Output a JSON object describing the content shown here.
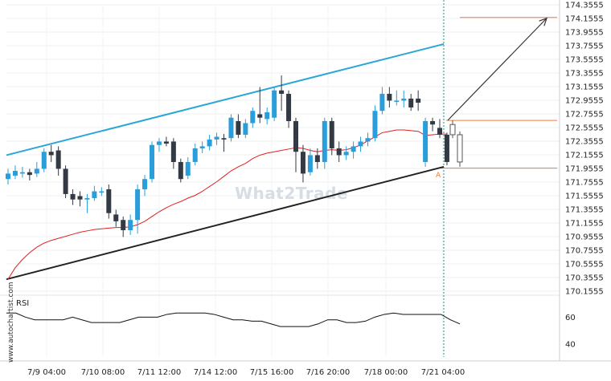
{
  "watermark": "What2Trade",
  "side_credit": "www.autochartist.com",
  "rsi_label": "RSI",
  "colors": {
    "bull": "#2a9ddb",
    "bear": "#333a44",
    "ma": "#e02020",
    "resistance": "#2aa6d9",
    "support": "#222222",
    "levels": "#f07a3c",
    "arrow": "#333333",
    "vline": "#2f8c8c"
  },
  "chart_data": {
    "type": "candlestick",
    "y_ticks": [
      "174.3555",
      "174.1555",
      "173.9555",
      "173.7555",
      "173.5555",
      "173.3555",
      "173.1555",
      "172.9555",
      "172.7555",
      "172.5555",
      "172.3555",
      "172.1555",
      "171.9555",
      "171.7555",
      "171.5555",
      "171.3555",
      "171.1555",
      "170.9555",
      "170.7555",
      "170.5555",
      "170.3555",
      "170.1555"
    ],
    "ylim": [
      170.1555,
      174.3555
    ],
    "x_ticks": [
      "7/9 04:00",
      "7/10 08:00",
      "7/11 12:00",
      "7/14 12:00",
      "7/15 16:00",
      "7/16 20:00",
      "7/18 00:00",
      "7/21 04:00"
    ],
    "candles": [
      {
        "o": 171.8,
        "c": 171.88,
        "h": 171.95,
        "l": 171.72
      },
      {
        "o": 171.85,
        "c": 171.92,
        "h": 172.0,
        "l": 171.8
      },
      {
        "o": 171.88,
        "c": 171.9,
        "h": 171.98,
        "l": 171.82
      },
      {
        "o": 171.9,
        "c": 171.86,
        "h": 171.95,
        "l": 171.78
      },
      {
        "o": 171.88,
        "c": 171.95,
        "h": 172.05,
        "l": 171.83
      },
      {
        "o": 171.95,
        "c": 172.2,
        "h": 172.25,
        "l": 171.9
      },
      {
        "o": 172.2,
        "c": 172.15,
        "h": 172.3,
        "l": 172.05
      },
      {
        "o": 172.22,
        "c": 171.95,
        "h": 172.28,
        "l": 171.85
      },
      {
        "o": 171.95,
        "c": 171.58,
        "h": 172.0,
        "l": 171.52
      },
      {
        "o": 171.58,
        "c": 171.5,
        "h": 171.65,
        "l": 171.42
      },
      {
        "o": 171.55,
        "c": 171.5,
        "h": 171.62,
        "l": 171.4
      },
      {
        "o": 171.5,
        "c": 171.52,
        "h": 171.58,
        "l": 171.3
      },
      {
        "o": 171.52,
        "c": 171.62,
        "h": 171.7,
        "l": 171.48
      },
      {
        "o": 171.6,
        "c": 171.62,
        "h": 171.68,
        "l": 171.55
      },
      {
        "o": 171.65,
        "c": 171.3,
        "h": 171.72,
        "l": 171.22
      },
      {
        "o": 171.28,
        "c": 171.18,
        "h": 171.35,
        "l": 171.1
      },
      {
        "o": 171.2,
        "c": 171.05,
        "h": 171.25,
        "l": 170.95
      },
      {
        "o": 171.05,
        "c": 171.2,
        "h": 171.28,
        "l": 170.98
      },
      {
        "o": 171.2,
        "c": 171.65,
        "h": 171.72,
        "l": 171.0
      },
      {
        "o": 171.65,
        "c": 171.8,
        "h": 171.86,
        "l": 171.55
      },
      {
        "o": 171.8,
        "c": 172.3,
        "h": 172.35,
        "l": 171.75
      },
      {
        "o": 172.3,
        "c": 172.35,
        "h": 172.4,
        "l": 172.2
      },
      {
        "o": 172.35,
        "c": 172.32,
        "h": 172.42,
        "l": 172.28
      },
      {
        "o": 172.35,
        "c": 172.05,
        "h": 172.4,
        "l": 171.95
      },
      {
        "o": 172.05,
        "c": 171.8,
        "h": 172.1,
        "l": 171.75
      },
      {
        "o": 171.85,
        "c": 172.05,
        "h": 172.12,
        "l": 171.8
      },
      {
        "o": 172.05,
        "c": 172.25,
        "h": 172.32,
        "l": 172.0
      },
      {
        "o": 172.25,
        "c": 172.28,
        "h": 172.35,
        "l": 172.18
      },
      {
        "o": 172.28,
        "c": 172.38,
        "h": 172.45,
        "l": 172.22
      },
      {
        "o": 172.38,
        "c": 172.42,
        "h": 172.48,
        "l": 172.3
      },
      {
        "o": 172.4,
        "c": 172.38,
        "h": 172.46,
        "l": 172.2
      },
      {
        "o": 172.4,
        "c": 172.7,
        "h": 172.75,
        "l": 172.35
      },
      {
        "o": 172.65,
        "c": 172.45,
        "h": 172.75,
        "l": 172.4
      },
      {
        "o": 172.45,
        "c": 172.62,
        "h": 172.68,
        "l": 172.4
      },
      {
        "o": 172.62,
        "c": 172.8,
        "h": 172.85,
        "l": 172.55
      },
      {
        "o": 172.75,
        "c": 172.7,
        "h": 173.15,
        "l": 172.62
      },
      {
        "o": 172.68,
        "c": 172.78,
        "h": 172.85,
        "l": 172.6
      },
      {
        "o": 172.7,
        "c": 173.1,
        "h": 173.15,
        "l": 172.65
      },
      {
        "o": 173.1,
        "c": 173.05,
        "h": 173.32,
        "l": 172.8
      },
      {
        "o": 173.05,
        "c": 172.65,
        "h": 173.1,
        "l": 172.55
      },
      {
        "o": 172.65,
        "c": 172.2,
        "h": 172.7,
        "l": 171.9
      },
      {
        "o": 172.2,
        "c": 171.88,
        "h": 172.3,
        "l": 171.75
      },
      {
        "o": 171.9,
        "c": 172.15,
        "h": 172.25,
        "l": 171.85
      },
      {
        "o": 172.15,
        "c": 172.05,
        "h": 172.25,
        "l": 171.95
      },
      {
        "o": 172.05,
        "c": 172.65,
        "h": 172.7,
        "l": 171.95
      },
      {
        "o": 172.65,
        "c": 172.25,
        "h": 172.7,
        "l": 172.15
      },
      {
        "o": 172.25,
        "c": 172.15,
        "h": 172.35,
        "l": 172.05
      },
      {
        "o": 172.15,
        "c": 172.2,
        "h": 172.28,
        "l": 172.08
      },
      {
        "o": 172.2,
        "c": 172.28,
        "h": 172.35,
        "l": 172.1
      },
      {
        "o": 172.28,
        "c": 172.35,
        "h": 172.42,
        "l": 172.2
      },
      {
        "o": 172.35,
        "c": 172.4,
        "h": 172.48,
        "l": 172.28
      },
      {
        "o": 172.4,
        "c": 172.8,
        "h": 172.88,
        "l": 172.35
      },
      {
        "o": 172.8,
        "c": 173.05,
        "h": 173.15,
        "l": 172.75
      },
      {
        "o": 173.05,
        "c": 172.95,
        "h": 173.15,
        "l": 172.85
      },
      {
        "o": 172.95,
        "c": 172.95,
        "h": 173.1,
        "l": 172.88
      },
      {
        "o": 172.95,
        "c": 172.98,
        "h": 173.1,
        "l": 172.85
      },
      {
        "o": 172.98,
        "c": 172.85,
        "h": 173.05,
        "l": 172.8
      },
      {
        "o": 172.98,
        "c": 172.92,
        "h": 173.1,
        "l": 172.8
      },
      {
        "o": 172.05,
        "c": 172.65,
        "h": 172.7,
        "l": 171.98
      },
      {
        "o": 172.65,
        "c": 172.6,
        "h": 172.7,
        "l": 172.5
      },
      {
        "o": 172.55,
        "c": 172.45,
        "h": 172.68,
        "l": 172.4
      },
      {
        "o": 172.45,
        "c": 172.05,
        "h": 172.48,
        "l": 172.0
      }
    ],
    "ma": [
      170.33,
      170.5,
      170.62,
      170.72,
      170.8,
      170.86,
      170.9,
      170.93,
      170.96,
      170.99,
      171.02,
      171.04,
      171.06,
      171.07,
      171.08,
      171.09,
      171.09,
      171.1,
      171.13,
      171.18,
      171.25,
      171.32,
      171.38,
      171.43,
      171.47,
      171.52,
      171.56,
      171.62,
      171.69,
      171.76,
      171.84,
      171.92,
      171.98,
      172.03,
      172.1,
      172.15,
      172.18,
      172.2,
      172.22,
      172.24,
      172.26,
      172.25,
      172.22,
      172.2,
      172.22,
      172.23,
      172.22,
      172.23,
      172.26,
      172.3,
      172.36,
      172.42,
      172.48,
      172.5,
      172.52,
      172.52,
      172.51,
      172.5,
      172.44,
      172.45,
      172.46,
      172.46
    ],
    "resistance": {
      "from": 172.15,
      "to": 173.78
    },
    "support": {
      "from": 170.33,
      "to": 171.98
    },
    "levels": [
      172.66,
      171.96,
      174.17
    ],
    "target": 174.17,
    "pattern_point": "A",
    "rsi": [
      63,
      63,
      60,
      58,
      58,
      58,
      58,
      60,
      58,
      56,
      56,
      56,
      56,
      58,
      60,
      60,
      60,
      62,
      63,
      63,
      63,
      63,
      62,
      60,
      58,
      58,
      57,
      57,
      55,
      53,
      53,
      53,
      53,
      55,
      58,
      58,
      56,
      56,
      57,
      60,
      62,
      63,
      62,
      62,
      62,
      62,
      62,
      58,
      55
    ],
    "rsi_ticks": [
      60,
      40
    ],
    "rsi_ylim": [
      30,
      75
    ]
  }
}
